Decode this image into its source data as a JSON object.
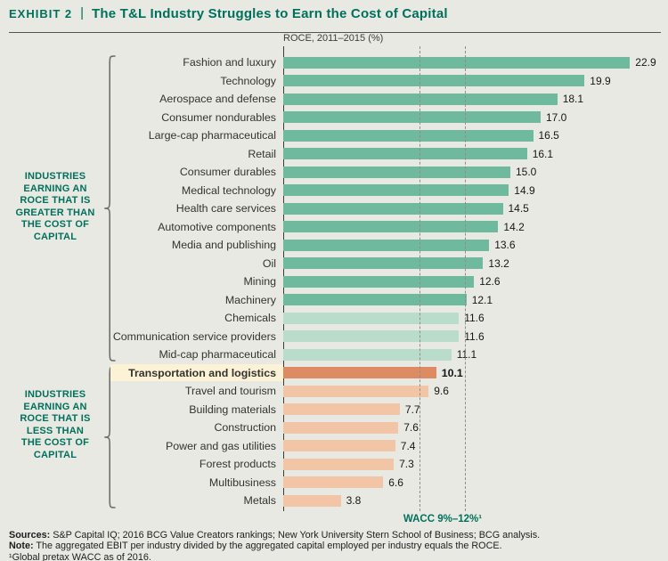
{
  "header": {
    "exhibit_label": "EXHIBIT 2",
    "separator": "|",
    "title": "The T&L Industry Struggles to Earn the Cost of Capital"
  },
  "chart_data": {
    "type": "bar",
    "orientation": "horizontal",
    "title": "The T&L Industry Struggles to Earn the Cost of Capital",
    "axis_title": "ROCE, 2011–2015 (%)",
    "unit": "%",
    "xlim": [
      0,
      23.5
    ],
    "wacc_range": [
      9,
      12
    ],
    "wacc_label": "WACC 9%–12%¹",
    "categories": [
      "Fashion and luxury",
      "Technology",
      "Aerospace and defense",
      "Consumer nondurables",
      "Large-cap pharmaceutical",
      "Retail",
      "Consumer durables",
      "Medical technology",
      "Health care services",
      "Automotive components",
      "Media and publishing",
      "Oil",
      "Mining",
      "Machinery",
      "Chemicals",
      "Communication service providers",
      "Mid-cap pharmaceutical",
      "Transportation and logistics",
      "Travel and tourism",
      "Building materials",
      "Construction",
      "Power and gas utilities",
      "Forest products",
      "Multibusiness",
      "Metals"
    ],
    "values": [
      22.9,
      19.9,
      18.1,
      17.0,
      16.5,
      16.1,
      15.0,
      14.9,
      14.5,
      14.2,
      13.6,
      13.2,
      12.6,
      12.1,
      11.6,
      11.6,
      11.1,
      10.1,
      9.6,
      7.7,
      7.6,
      7.4,
      7.3,
      6.6,
      3.8
    ],
    "groups": [
      "green_dark",
      "green_dark",
      "green_dark",
      "green_dark",
      "green_dark",
      "green_dark",
      "green_dark",
      "green_dark",
      "green_dark",
      "green_dark",
      "green_dark",
      "green_dark",
      "green_dark",
      "green_dark",
      "green_light",
      "green_light",
      "green_light",
      "highlight_bar",
      "orange_light",
      "orange_light",
      "orange_light",
      "orange_light",
      "orange_light",
      "orange_light",
      "orange_light"
    ],
    "highlighted_category": "Transportation and logistics"
  },
  "annotations": {
    "greater": "INDUSTRIES\nEARNING AN\nROCE THAT IS\nGREATER THAN\nTHE COST OF\nCAPITAL",
    "less": "INDUSTRIES\nEARNING AN\nROCE THAT IS\nLESS THAN\nTHE COST OF\nCAPITAL"
  },
  "colors": {
    "accent_teal": "#00705C",
    "green_dark": "#6FB99E",
    "green_light": "#BADCCB",
    "highlight_bar": "#DD8B63",
    "orange_light": "#F3C5A7",
    "highlight_bg": "#FCF3D6",
    "background": "#E9E9E3"
  },
  "footer": {
    "sources_label": "Sources:",
    "sources_text": "S&P Capital IQ; 2016 BCG Value Creators rankings; New York University Stern School of Business; BCG analysis.",
    "note_label": "Note:",
    "note_text": "The aggregated EBIT per industry divided by the aggregated capital employed per industry equals the ROCE.",
    "footnote": "¹Global pretax WACC as of 2016."
  }
}
